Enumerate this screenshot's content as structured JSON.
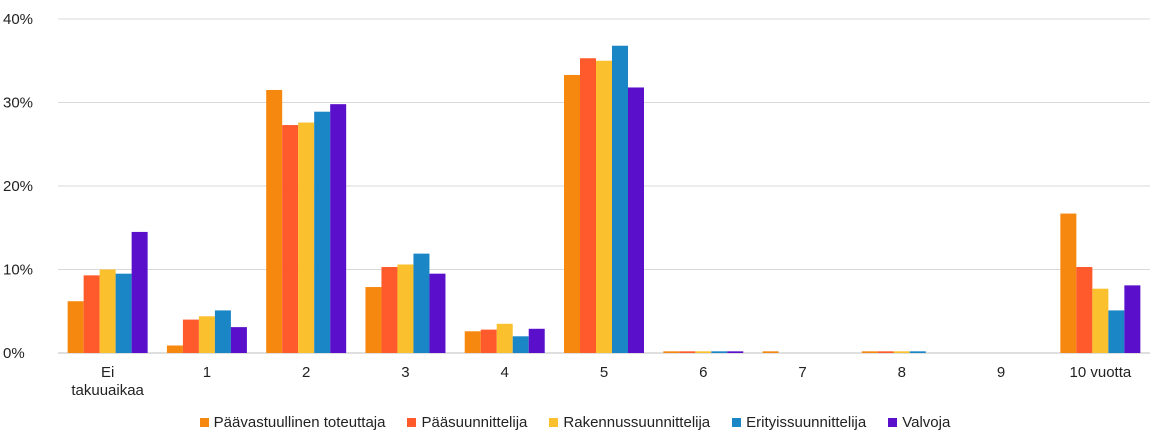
{
  "chart_data": {
    "type": "bar",
    "title": "",
    "xlabel": "",
    "ylabel": "",
    "ylim": [
      0,
      40
    ],
    "yticks": [
      "0%",
      "10%",
      "20%",
      "30%",
      "40%"
    ],
    "ytick_values": [
      0,
      10,
      20,
      30,
      40
    ],
    "categories": [
      "Ei takuuaikaa",
      "1",
      "2",
      "3",
      "4",
      "5",
      "6",
      "7",
      "8",
      "9",
      "10 vuotta"
    ],
    "category_lines": [
      [
        "Ei",
        "takuuaikaa"
      ],
      [
        "1"
      ],
      [
        "2"
      ],
      [
        "3"
      ],
      [
        "4"
      ],
      [
        "5"
      ],
      [
        "6"
      ],
      [
        "7"
      ],
      [
        "8"
      ],
      [
        "9"
      ],
      [
        "10 vuotta"
      ]
    ],
    "grid": true,
    "legend_position": "bottom",
    "series": [
      {
        "name": "Päävastuullinen toteuttaja",
        "color": "#F7880F",
        "values": [
          6.2,
          0.9,
          31.5,
          7.9,
          2.6,
          33.3,
          0.2,
          0.2,
          0.2,
          0,
          16.7
        ]
      },
      {
        "name": "Pääsuunnittelija",
        "color": "#FF5A2C",
        "values": [
          9.3,
          4.0,
          27.3,
          10.3,
          2.8,
          35.3,
          0.2,
          0,
          0.2,
          0,
          10.3
        ]
      },
      {
        "name": "Rakennussuunnittelija",
        "color": "#FBC02D",
        "values": [
          10.0,
          4.4,
          27.6,
          10.6,
          3.5,
          35.0,
          0.2,
          0,
          0.2,
          0,
          7.7
        ]
      },
      {
        "name": "Erityissuunnittelija",
        "color": "#1B86C6",
        "values": [
          9.5,
          5.1,
          28.9,
          11.9,
          2.0,
          36.8,
          0.2,
          0,
          0.2,
          0,
          5.1
        ]
      },
      {
        "name": "Valvoja",
        "color": "#5A0FCB",
        "values": [
          14.5,
          3.1,
          29.8,
          9.5,
          2.9,
          31.8,
          0.2,
          0,
          0,
          0,
          8.1
        ]
      }
    ]
  }
}
